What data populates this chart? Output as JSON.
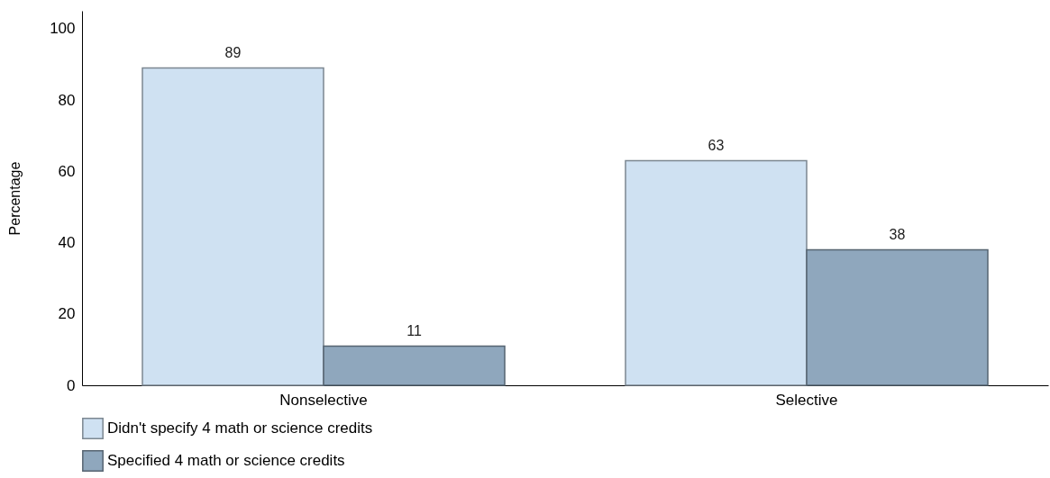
{
  "chart_data": {
    "type": "bar",
    "ylabel": "Percentage",
    "categories": [
      "Nonselective",
      "Selective"
    ],
    "series": [
      {
        "name": "Didn't specify 4 math or science credits",
        "color": "#cfe1f2",
        "values": [
          89,
          63
        ]
      },
      {
        "name": "Specified 4 math or science credits",
        "color": "#8fa7bd",
        "values": [
          11,
          38
        ]
      }
    ],
    "ylim": [
      0,
      105
    ],
    "yticks": [
      0,
      20,
      40,
      60,
      80,
      100
    ],
    "grid": false,
    "legend": "bottom",
    "data_labels": true
  }
}
